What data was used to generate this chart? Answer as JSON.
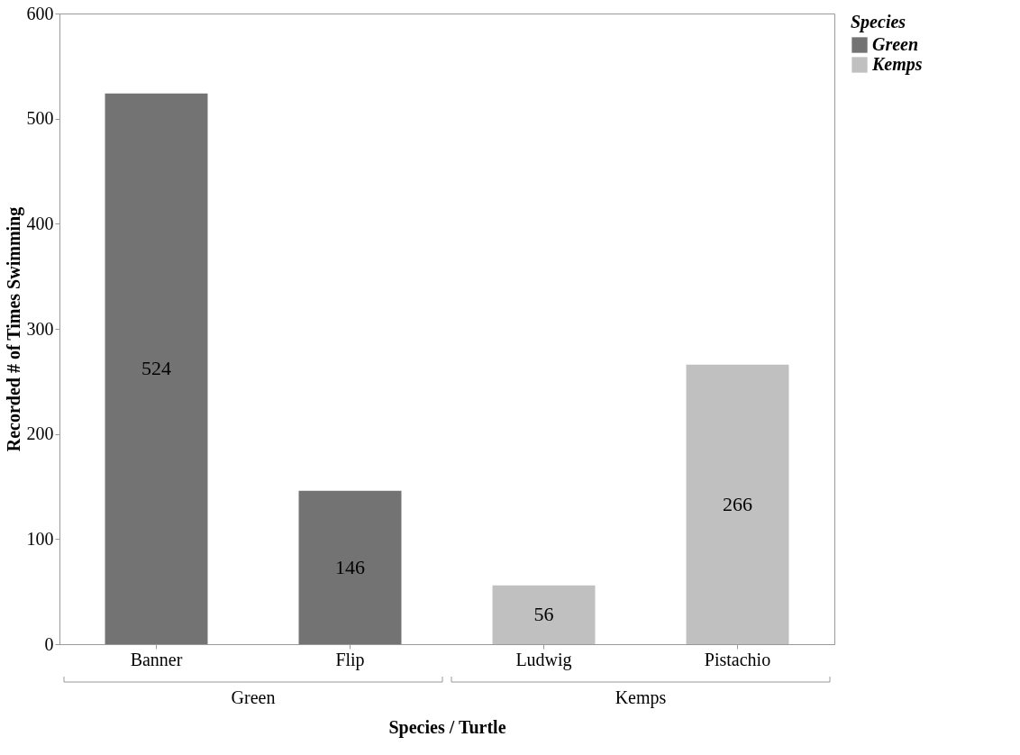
{
  "chart_data": {
    "type": "bar",
    "categories": [
      "Banner",
      "Flip",
      "Ludwig",
      "Pistachio"
    ],
    "series": [
      {
        "name": "Green",
        "color": "#737373",
        "values": [
          524,
          146,
          null,
          null
        ]
      },
      {
        "name": "Kemps",
        "color": "#c0c0c0",
        "values": [
          null,
          null,
          56,
          266
        ]
      }
    ],
    "xlabel": "Species / Turtle",
    "ylabel": "Recorded # of Times Swimming",
    "legend_title": "Species",
    "annotations": [
      "Green",
      "Kemps"
    ],
    "ylim": [
      0,
      600
    ],
    "yticks": [
      0,
      100,
      200,
      300,
      400,
      500,
      600
    ],
    "data_labels": true,
    "grid": false,
    "legend": "top right"
  }
}
